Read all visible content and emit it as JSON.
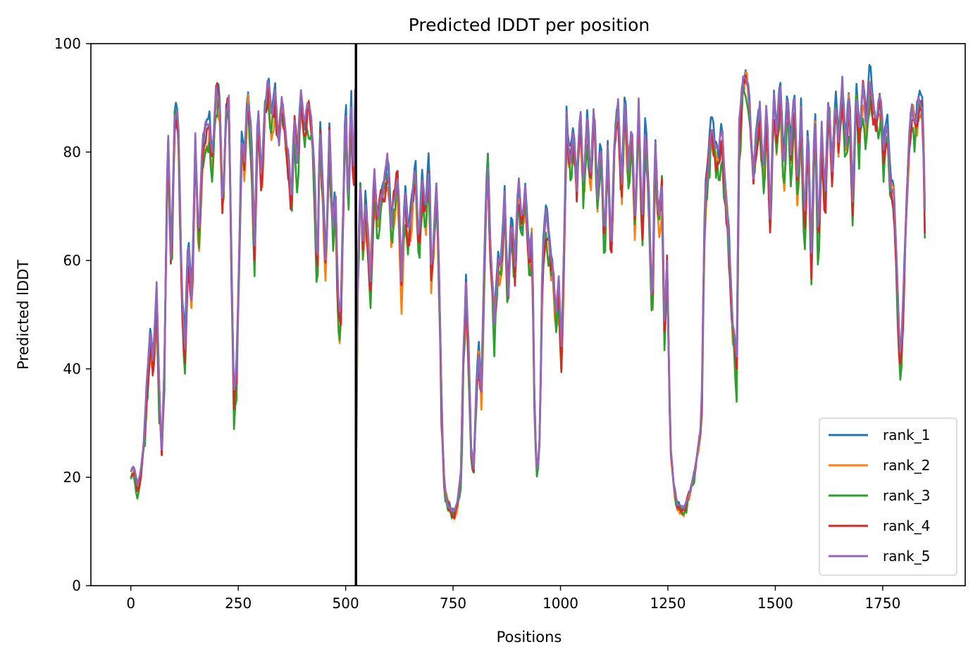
{
  "chart_data": {
    "type": "line",
    "title": "Predicted lDDT per position",
    "xlabel": "Positions",
    "ylabel": "Predicted lDDT",
    "xlim": [
      -93,
      1942
    ],
    "ylim": [
      0,
      100
    ],
    "xticks": [
      0,
      250,
      500,
      750,
      1000,
      1250,
      1500,
      1750
    ],
    "yticks": [
      0,
      20,
      40,
      60,
      80,
      100
    ],
    "grid": false,
    "legend_position": "lower-right",
    "vline": {
      "x": 524,
      "color": "#000000"
    },
    "x_max": 1850,
    "anchors": [
      [
        0,
        21
      ],
      [
        8,
        22
      ],
      [
        15,
        18
      ],
      [
        22,
        20
      ],
      [
        30,
        26
      ],
      [
        38,
        38
      ],
      [
        46,
        47
      ],
      [
        52,
        40
      ],
      [
        60,
        55
      ],
      [
        66,
        35
      ],
      [
        72,
        25
      ],
      [
        78,
        40
      ],
      [
        86,
        84
      ],
      [
        94,
        58
      ],
      [
        102,
        87
      ],
      [
        110,
        88
      ],
      [
        118,
        55
      ],
      [
        126,
        44
      ],
      [
        134,
        64
      ],
      [
        142,
        52
      ],
      [
        150,
        82
      ],
      [
        158,
        62
      ],
      [
        166,
        80
      ],
      [
        174,
        84
      ],
      [
        182,
        86
      ],
      [
        190,
        79
      ],
      [
        198,
        91
      ],
      [
        206,
        91
      ],
      [
        214,
        68
      ],
      [
        222,
        88
      ],
      [
        228,
        89
      ],
      [
        234,
        60
      ],
      [
        240,
        34
      ],
      [
        246,
        40
      ],
      [
        252,
        60
      ],
      [
        258,
        82
      ],
      [
        264,
        78
      ],
      [
        272,
        91
      ],
      [
        280,
        84
      ],
      [
        288,
        62
      ],
      [
        296,
        88
      ],
      [
        304,
        74
      ],
      [
        312,
        88
      ],
      [
        320,
        93
      ],
      [
        328,
        85
      ],
      [
        336,
        91
      ],
      [
        344,
        80
      ],
      [
        352,
        90
      ],
      [
        360,
        82
      ],
      [
        368,
        78
      ],
      [
        374,
        70
      ],
      [
        380,
        86
      ],
      [
        388,
        78
      ],
      [
        396,
        90
      ],
      [
        404,
        82
      ],
      [
        412,
        90
      ],
      [
        420,
        85
      ],
      [
        428,
        75
      ],
      [
        434,
        55
      ],
      [
        440,
        86
      ],
      [
        448,
        70
      ],
      [
        454,
        58
      ],
      [
        462,
        84
      ],
      [
        470,
        65
      ],
      [
        476,
        74
      ],
      [
        482,
        52
      ],
      [
        488,
        46
      ],
      [
        494,
        68
      ],
      [
        500,
        90
      ],
      [
        506,
        66
      ],
      [
        512,
        92
      ],
      [
        518,
        74
      ],
      [
        522,
        90
      ],
      [
        524,
        22
      ],
      [
        528,
        55
      ],
      [
        534,
        74
      ],
      [
        540,
        63
      ],
      [
        546,
        71
      ],
      [
        552,
        64
      ],
      [
        558,
        55
      ],
      [
        566,
        77
      ],
      [
        574,
        66
      ],
      [
        582,
        71
      ],
      [
        590,
        74
      ],
      [
        598,
        78
      ],
      [
        606,
        66
      ],
      [
        614,
        72
      ],
      [
        622,
        76
      ],
      [
        630,
        55
      ],
      [
        638,
        72
      ],
      [
        646,
        64
      ],
      [
        654,
        70
      ],
      [
        662,
        78
      ],
      [
        670,
        62
      ],
      [
        678,
        74
      ],
      [
        686,
        68
      ],
      [
        694,
        78
      ],
      [
        700,
        55
      ],
      [
        706,
        66
      ],
      [
        712,
        74
      ],
      [
        718,
        55
      ],
      [
        724,
        30
      ],
      [
        730,
        18
      ],
      [
        738,
        15
      ],
      [
        746,
        14
      ],
      [
        754,
        13
      ],
      [
        762,
        16
      ],
      [
        768,
        20
      ],
      [
        774,
        42
      ],
      [
        780,
        55
      ],
      [
        786,
        44
      ],
      [
        792,
        25
      ],
      [
        798,
        22
      ],
      [
        804,
        36
      ],
      [
        810,
        42
      ],
      [
        816,
        36
      ],
      [
        822,
        56
      ],
      [
        830,
        80
      ],
      [
        838,
        60
      ],
      [
        846,
        48
      ],
      [
        854,
        60
      ],
      [
        862,
        58
      ],
      [
        870,
        72
      ],
      [
        878,
        52
      ],
      [
        886,
        68
      ],
      [
        894,
        58
      ],
      [
        902,
        75
      ],
      [
        910,
        65
      ],
      [
        918,
        72
      ],
      [
        926,
        60
      ],
      [
        934,
        65
      ],
      [
        940,
        30
      ],
      [
        946,
        20
      ],
      [
        952,
        28
      ],
      [
        958,
        60
      ],
      [
        966,
        68
      ],
      [
        974,
        64
      ],
      [
        982,
        58
      ],
      [
        990,
        50
      ],
      [
        996,
        56
      ],
      [
        1002,
        42
      ],
      [
        1008,
        60
      ],
      [
        1014,
        86
      ],
      [
        1022,
        78
      ],
      [
        1030,
        84
      ],
      [
        1038,
        74
      ],
      [
        1046,
        88
      ],
      [
        1054,
        72
      ],
      [
        1062,
        86
      ],
      [
        1070,
        74
      ],
      [
        1078,
        88
      ],
      [
        1086,
        70
      ],
      [
        1094,
        82
      ],
      [
        1102,
        62
      ],
      [
        1110,
        80
      ],
      [
        1118,
        60
      ],
      [
        1126,
        82
      ],
      [
        1134,
        88
      ],
      [
        1142,
        72
      ],
      [
        1150,
        90
      ],
      [
        1158,
        76
      ],
      [
        1166,
        84
      ],
      [
        1174,
        66
      ],
      [
        1182,
        88
      ],
      [
        1190,
        64
      ],
      [
        1198,
        86
      ],
      [
        1206,
        70
      ],
      [
        1214,
        48
      ],
      [
        1220,
        82
      ],
      [
        1228,
        66
      ],
      [
        1236,
        74
      ],
      [
        1242,
        48
      ],
      [
        1248,
        60
      ],
      [
        1256,
        26
      ],
      [
        1264,
        18
      ],
      [
        1272,
        15
      ],
      [
        1280,
        14
      ],
      [
        1288,
        14
      ],
      [
        1296,
        16
      ],
      [
        1304,
        18
      ],
      [
        1312,
        21
      ],
      [
        1320,
        25
      ],
      [
        1328,
        30
      ],
      [
        1336,
        72
      ],
      [
        1344,
        78
      ],
      [
        1352,
        86
      ],
      [
        1360,
        80
      ],
      [
        1368,
        78
      ],
      [
        1376,
        84
      ],
      [
        1384,
        72
      ],
      [
        1392,
        64
      ],
      [
        1400,
        48
      ],
      [
        1406,
        44
      ],
      [
        1410,
        40
      ],
      [
        1416,
        84
      ],
      [
        1424,
        92
      ],
      [
        1432,
        94
      ],
      [
        1440,
        88
      ],
      [
        1448,
        74
      ],
      [
        1456,
        82
      ],
      [
        1464,
        88
      ],
      [
        1472,
        76
      ],
      [
        1480,
        88
      ],
      [
        1488,
        66
      ],
      [
        1496,
        90
      ],
      [
        1504,
        82
      ],
      [
        1512,
        92
      ],
      [
        1520,
        76
      ],
      [
        1528,
        92
      ],
      [
        1536,
        80
      ],
      [
        1544,
        90
      ],
      [
        1552,
        72
      ],
      [
        1560,
        88
      ],
      [
        1568,
        66
      ],
      [
        1576,
        84
      ],
      [
        1584,
        60
      ],
      [
        1592,
        88
      ],
      [
        1600,
        62
      ],
      [
        1608,
        84
      ],
      [
        1616,
        70
      ],
      [
        1624,
        90
      ],
      [
        1632,
        76
      ],
      [
        1640,
        90
      ],
      [
        1648,
        82
      ],
      [
        1656,
        92
      ],
      [
        1664,
        80
      ],
      [
        1672,
        90
      ],
      [
        1680,
        70
      ],
      [
        1688,
        92
      ],
      [
        1696,
        82
      ],
      [
        1704,
        92
      ],
      [
        1712,
        84
      ],
      [
        1720,
        94
      ],
      [
        1728,
        88
      ],
      [
        1736,
        84
      ],
      [
        1744,
        90
      ],
      [
        1752,
        80
      ],
      [
        1760,
        86
      ],
      [
        1768,
        74
      ],
      [
        1776,
        72
      ],
      [
        1784,
        56
      ],
      [
        1790,
        40
      ],
      [
        1796,
        48
      ],
      [
        1802,
        62
      ],
      [
        1810,
        80
      ],
      [
        1818,
        88
      ],
      [
        1826,
        84
      ],
      [
        1834,
        90
      ],
      [
        1842,
        88
      ],
      [
        1846,
        80
      ],
      [
        1850,
        56
      ]
    ],
    "series": [
      {
        "name": "rank_1",
        "color": "#1f77b4",
        "offset": 1.2,
        "noise": 1.2,
        "seed": 11
      },
      {
        "name": "rank_2",
        "color": "#ff7f0e",
        "offset": -1.5,
        "noise": 2.4,
        "seed": 23
      },
      {
        "name": "rank_3",
        "color": "#2ca02c",
        "offset": -2.2,
        "noise": 2.8,
        "seed": 37
      },
      {
        "name": "rank_4",
        "color": "#d62728",
        "offset": -0.8,
        "noise": 2.0,
        "seed": 53
      },
      {
        "name": "rank_5",
        "color": "#9467bd",
        "offset": 0.6,
        "noise": 1.2,
        "seed": 71
      }
    ]
  }
}
